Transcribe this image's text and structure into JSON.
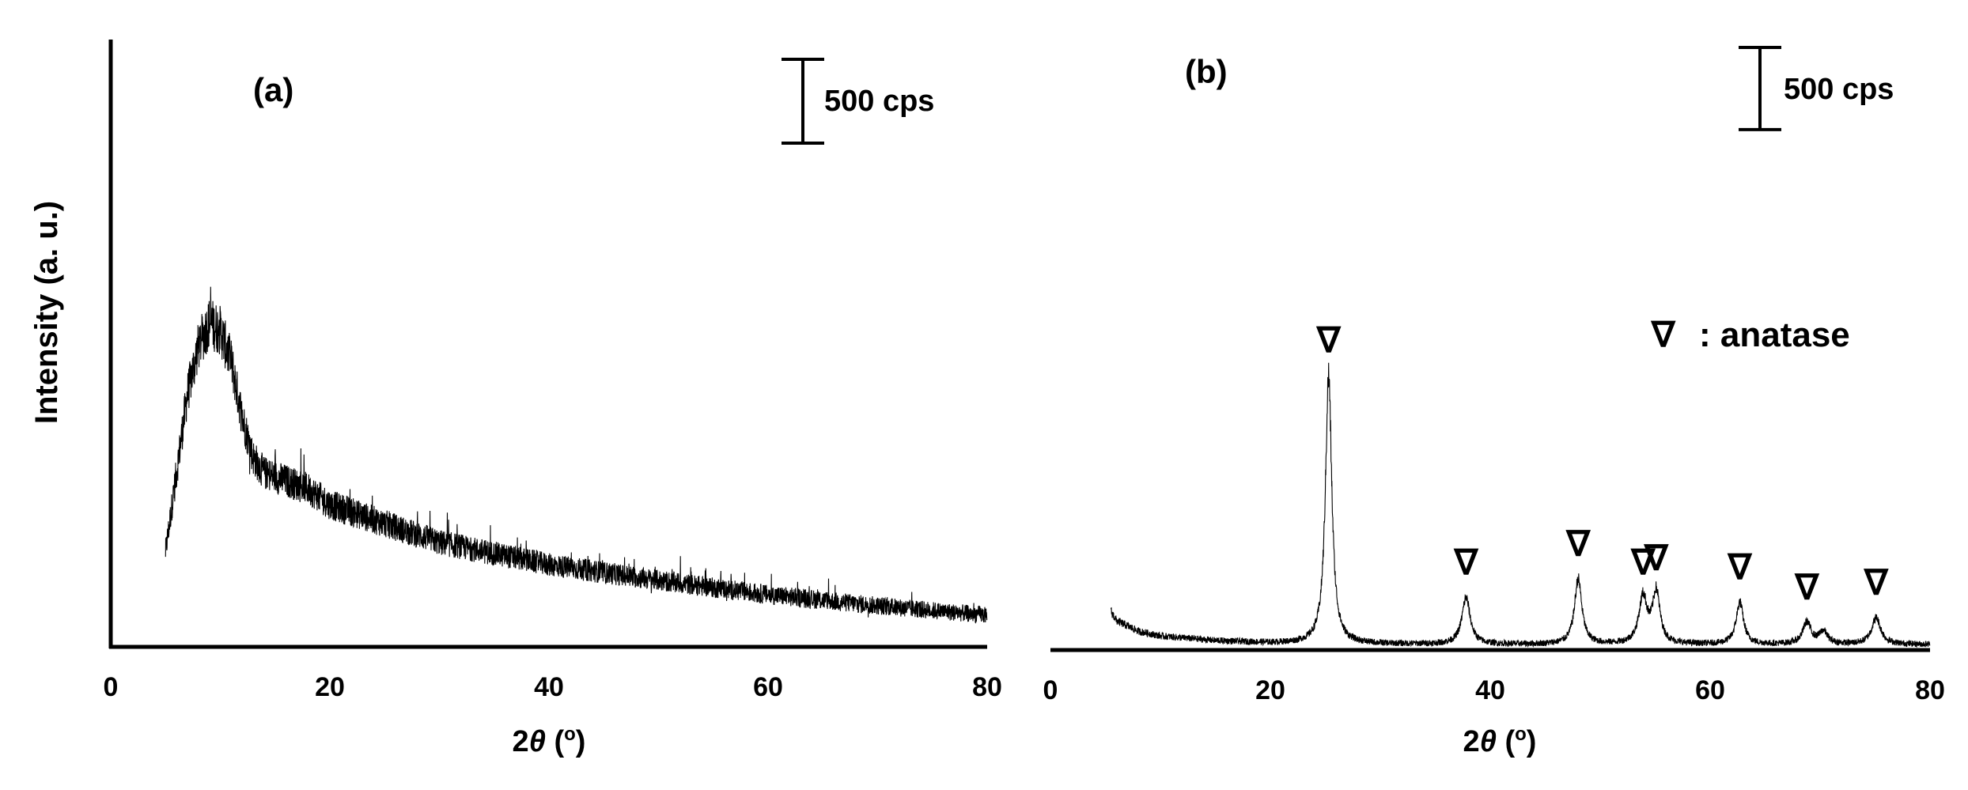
{
  "figure": {
    "ylabel": "Intensity (a. u.)",
    "xlabel": "2θ (o)",
    "xlabel_parts": {
      "prefix": "2",
      "theta": "θ",
      "unit_open": " (",
      "unit": "o",
      "unit_close": ")"
    },
    "scale_bar_label": "500 cps"
  },
  "chart_data": [
    {
      "type": "line",
      "panel_label": "(a)",
      "xlim": [
        0,
        80
      ],
      "xticks": [
        0,
        20,
        40,
        60,
        80
      ],
      "xtick_labels": [
        "0",
        "20",
        "40",
        "60",
        "80"
      ],
      "scale_bar_cps": 500,
      "grid": false,
      "noise_amplitude_cps": 120,
      "envelope": {
        "x": [
          5,
          6,
          7,
          8,
          9,
          10,
          11,
          12,
          13,
          14,
          16,
          18,
          20,
          25,
          30,
          40,
          50,
          60,
          70,
          80
        ],
        "y": [
          600,
          1100,
          1600,
          1900,
          2050,
          2000,
          1800,
          1450,
          1200,
          1100,
          1050,
          1000,
          900,
          780,
          660,
          520,
          420,
          330,
          260,
          200
        ]
      }
    },
    {
      "type": "line",
      "panel_label": "(b)",
      "xlim": [
        0,
        80
      ],
      "xticks": [
        0,
        20,
        40,
        60,
        80
      ],
      "xtick_labels": [
        "0",
        "20",
        "40",
        "60",
        "80"
      ],
      "scale_bar_cps": 500,
      "grid": false,
      "noise_amplitude_cps": 30,
      "legend": {
        "symbol": "∇",
        "text": ": anatase",
        "position": "right"
      },
      "baseline": {
        "x": [
          5.5,
          6,
          8,
          10,
          15,
          20,
          25,
          30,
          40,
          50,
          60,
          70,
          80
        ],
        "y": [
          250,
          190,
          120,
          90,
          60,
          45,
          40,
          38,
          36,
          36,
          36,
          36,
          36
        ]
      },
      "peaks": [
        {
          "x": 25.3,
          "height": 1730,
          "width": 0.35,
          "marker": "∇"
        },
        {
          "x": 37.8,
          "height": 300,
          "width": 0.45,
          "marker": "∇"
        },
        {
          "x": 48.0,
          "height": 420,
          "width": 0.4,
          "marker": "∇"
        },
        {
          "x": 53.9,
          "height": 300,
          "width": 0.45,
          "marker": "∇"
        },
        {
          "x": 55.1,
          "height": 330,
          "width": 0.4,
          "marker": "∇"
        },
        {
          "x": 62.7,
          "height": 270,
          "width": 0.4,
          "marker": "∇"
        },
        {
          "x": 68.8,
          "height": 140,
          "width": 0.45,
          "marker": "∇"
        },
        {
          "x": 70.3,
          "height": 80,
          "width": 0.45
        },
        {
          "x": 75.1,
          "height": 170,
          "width": 0.5,
          "marker": "∇"
        }
      ]
    }
  ]
}
